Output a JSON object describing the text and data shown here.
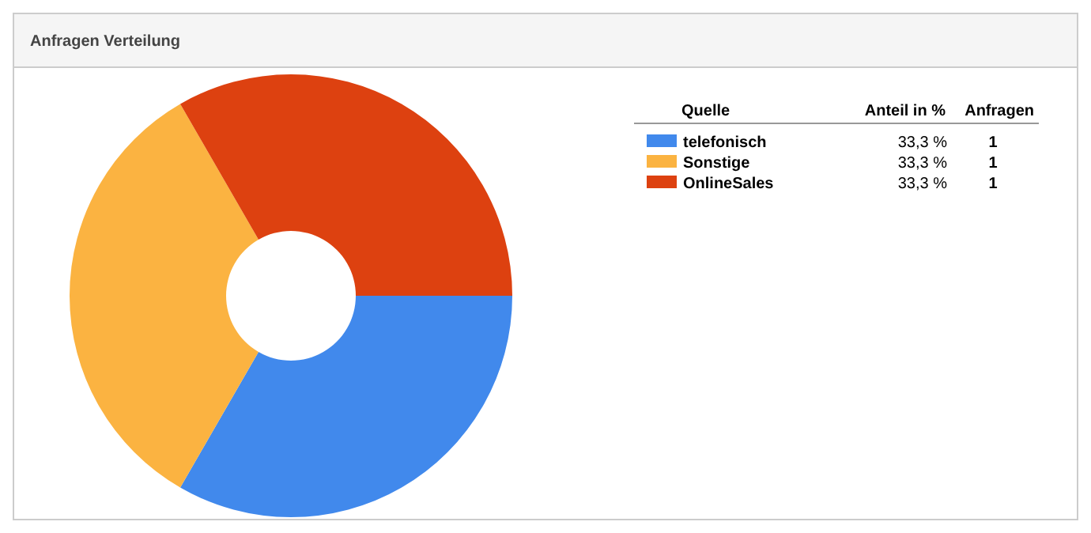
{
  "chart_data": {
    "type": "donut",
    "title": "Anfragen Verteilung",
    "legend_title": "Quelle",
    "annotations": [
      "Anteil in %",
      "Anfragen",
      "1",
      "1",
      "1"
    ],
    "categories": [
      "telefonisch",
      "Sonstige",
      "OnlineSales"
    ],
    "values": [
      33.3,
      33.3,
      33.3
    ],
    "value_labels": [
      "33,3 %",
      "33,3 %",
      "33,3 %"
    ],
    "colors": [
      "#4189ec",
      "#fbb341",
      "#dd4110"
    ],
    "legend": "right"
  }
}
